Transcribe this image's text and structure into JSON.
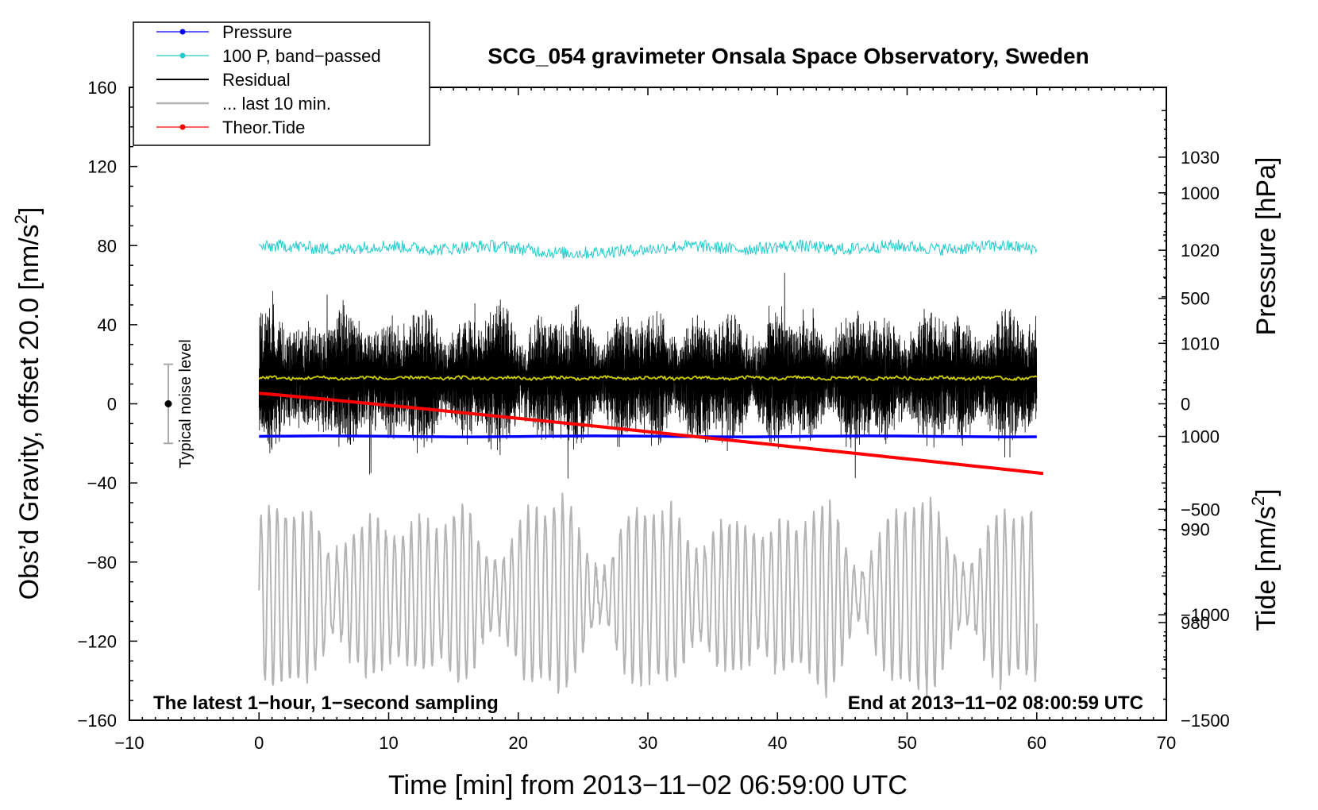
{
  "chart_data": {
    "type": "line",
    "title": "SCG_054 gravimeter Onsala Space Observatory, Sweden",
    "xlabel": "Time [min] from 2013−11−02 06:59:00 UTC",
    "ylabel_left_prefix": "Obs’d Gravity, offset 20.0 [nm/s",
    "ylabel_left_sup": "2",
    "ylabel_left_suffix": "]",
    "ylabel_pressure": "Pressure [hPa]",
    "ylabel_tide_prefix": "Tide [nm/s",
    "ylabel_tide_sup": "2",
    "ylabel_tide_suffix": "]",
    "xlim": [
      -10,
      70
    ],
    "ylim_left": [
      -160,
      160
    ],
    "ylim_pressure": [
      969.5,
      1037.5
    ],
    "ylim_tide": [
      -1500,
      1500
    ],
    "x_ticks": [
      "−10",
      "0",
      "10",
      "20",
      "30",
      "40",
      "50",
      "60",
      "70"
    ],
    "y_left_ticks": [
      "160",
      "120",
      "80",
      "40",
      "0",
      "−40",
      "−80",
      "−120",
      "−160"
    ],
    "y_pressure_ticks": [
      "1030",
      "1020",
      "1010",
      "1000",
      "990",
      "980"
    ],
    "y_tide_ticks": [
      "1000",
      "500",
      "0",
      "−500",
      "−1000",
      "−1500"
    ],
    "legend_position": "top-left",
    "legend": [
      {
        "label": "Pressure",
        "color": "#0000ff",
        "marker": true
      },
      {
        "label": "100 P, band−passed",
        "color": "#22cccc",
        "marker": true
      },
      {
        "label": "Residual",
        "color": "#000000",
        "marker": false
      },
      {
        "label": "... last 10 min.",
        "color": "#b4b4b4",
        "marker": false
      },
      {
        "label": "Theor.Tide",
        "color": "#ff0000",
        "marker": true
      }
    ],
    "annotations": {
      "bottom_left": "The latest 1−hour, 1−second sampling",
      "bottom_right": "End at 2013−11−02 08:00:59 UTC",
      "noise_label": "Typical noise level"
    },
    "noise_bar": {
      "x": -7,
      "center": 0,
      "low": -20,
      "high": 20
    },
    "series": [
      {
        "name": "Pressure",
        "axis": "pressure",
        "color": "#0000ff",
        "x_range": [
          0,
          60
        ],
        "start": 1000.0,
        "end": 1000.0
      },
      {
        "name": "100 P, band−passed",
        "axis": "left",
        "color": "#22cccc",
        "x_range": [
          0,
          60
        ],
        "mean": 79,
        "amplitude": 3.5
      },
      {
        "name": "Residual",
        "axis": "left",
        "color": "#000000",
        "x_range": [
          0,
          60
        ],
        "mean": 13,
        "amplitude": 35
      },
      {
        "name": "Residual smoothed",
        "axis": "left",
        "color": "#cccc00",
        "x_range": [
          0,
          60
        ],
        "mean": 13,
        "amplitude": 1
      },
      {
        "name": "... last 10 min.",
        "axis": "left",
        "color": "#b4b4b4",
        "x_range": [
          0,
          60
        ],
        "mean": -97,
        "amplitude": 40
      },
      {
        "name": "Theor.Tide",
        "axis": "tide",
        "color": "#ff0000",
        "x_range": [
          0,
          60.5
        ],
        "start": 50,
        "end": -330
      }
    ]
  }
}
